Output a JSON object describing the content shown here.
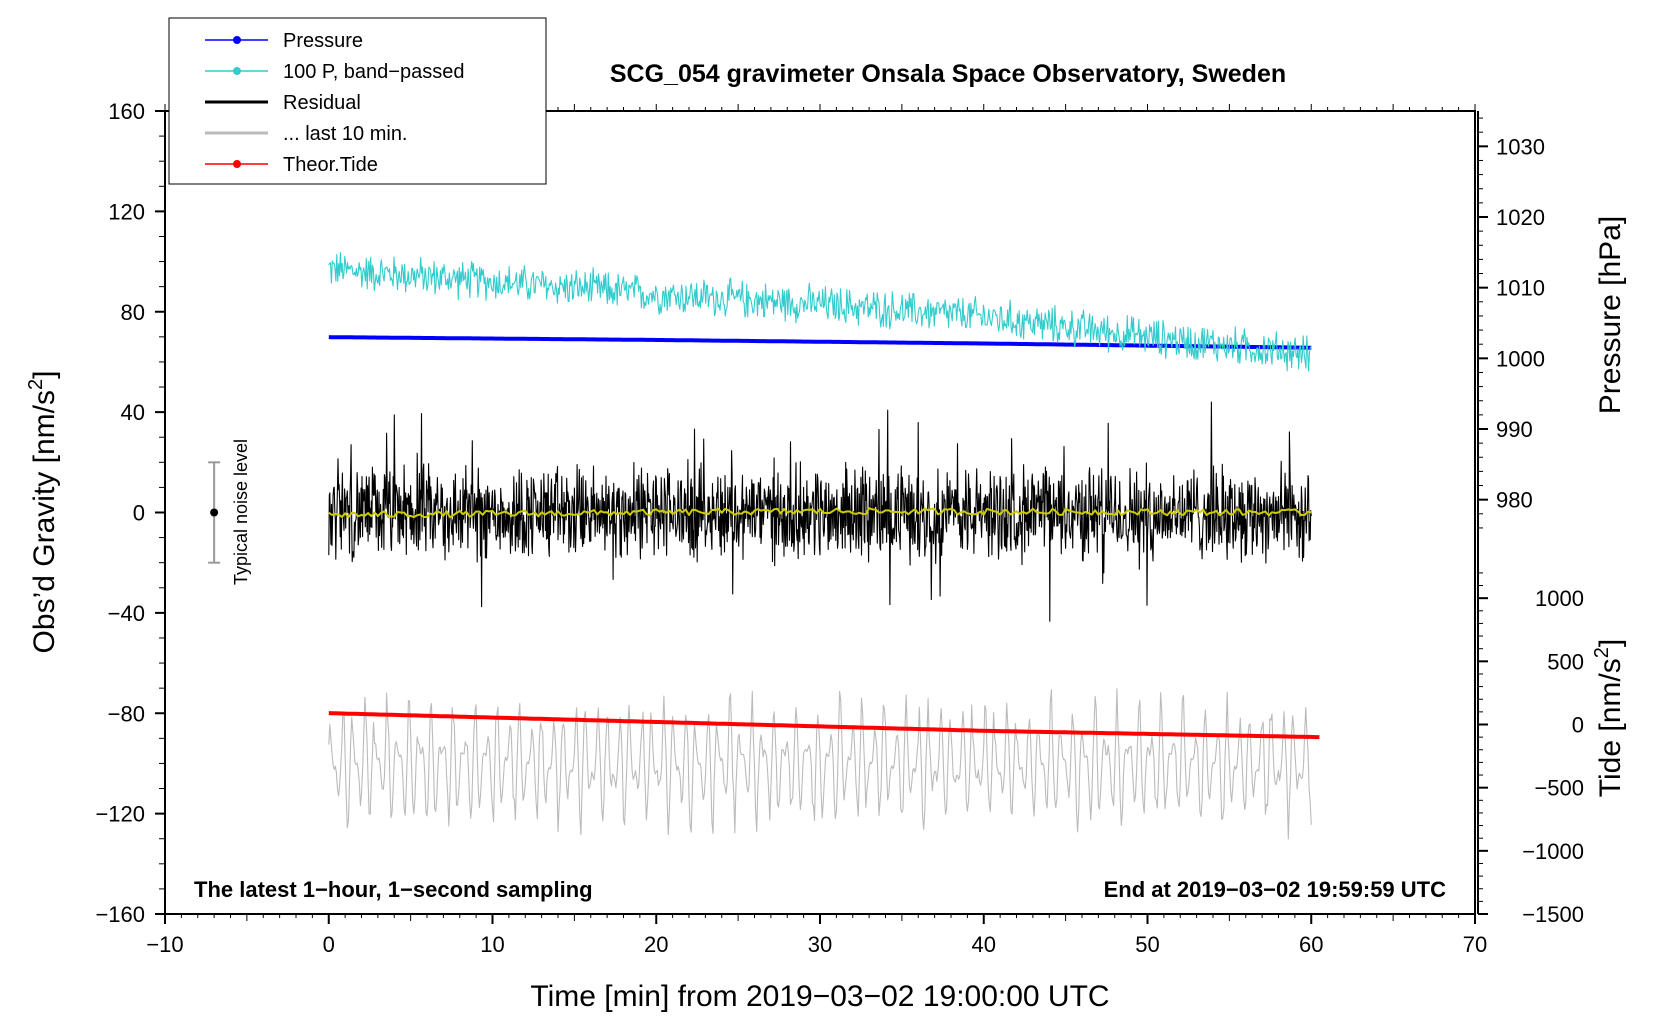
{
  "chart_data": {
    "type": "line",
    "title": "SCG_054 gravimeter Onsala Space Observatory, Sweden",
    "xlabel": "Time [min] from 2019−03−02 19:00:00 UTC",
    "ylabel_left": "Obs’d Gravity [nm/s",
    "ylabel_left_exp": "2",
    "ylabel_left_close": "]",
    "ylabel_pressure": "Pressure [hPa]",
    "ylabel_tide": "Tide [nm/s",
    "ylabel_tide_exp": "2",
    "ylabel_tide_close": "]",
    "xlim": [
      -10,
      70
    ],
    "ylim_left": [
      -160,
      160
    ],
    "ylim_pressure": [
      975,
      1035
    ],
    "ylim_tide": [
      -1500,
      1500
    ],
    "x_ticks": [
      "−10",
      "0",
      "10",
      "20",
      "30",
      "40",
      "50",
      "60",
      "70"
    ],
    "x_tick_values": [
      -10,
      0,
      10,
      20,
      30,
      40,
      50,
      60,
      70
    ],
    "y_ticks_left": [
      "160",
      "120",
      "80",
      "40",
      "0",
      "−40",
      "−80",
      "−120",
      "−160"
    ],
    "y_tick_values_left": [
      160,
      120,
      80,
      40,
      0,
      -40,
      -80,
      -120,
      -160
    ],
    "pressure_ticks": [
      "1030",
      "1020",
      "1010",
      "1000",
      "990",
      "980"
    ],
    "pressure_tick_values": [
      1030,
      1020,
      1010,
      1000,
      990,
      980
    ],
    "tide_ticks": [
      "1000",
      "500",
      "0",
      "−500",
      "−1000",
      "−1500"
    ],
    "tide_tick_values": [
      1000,
      500,
      0,
      -500,
      -1000,
      -1500
    ],
    "footer_left": "The latest 1−hour, 1−second sampling",
    "footer_right": "End at 2019−03−02 19:59:59 UTC",
    "noise": {
      "label": "Typical noise level",
      "x": -7,
      "center": 0,
      "half_range": 20
    },
    "legend": [
      {
        "label": "Pressure",
        "color": "#0000ff",
        "marker": true
      },
      {
        "label": "100 P, band−passed",
        "color": "#33cccc",
        "marker": true
      },
      {
        "label": "Residual",
        "color": "#000000",
        "marker": false
      },
      {
        "label": "... last 10 min.",
        "color": "#bbbbbb",
        "marker": false
      },
      {
        "label": "Theor.Tide",
        "color": "#ff0000",
        "marker": true
      }
    ],
    "series": [
      {
        "name": "Pressure",
        "axis": "pressure",
        "color": "#0000ff",
        "x": [
          0,
          20,
          40,
          60
        ],
        "values": [
          1003.0,
          1002.6,
          1002.1,
          1001.5
        ]
      },
      {
        "name": "100 P, band−passed",
        "axis": "left",
        "color": "#33cccc",
        "x": [
          0,
          10,
          20,
          30,
          40,
          50,
          60
        ],
        "values": [
          97,
          92,
          87,
          83,
          78,
          70,
          63
        ],
        "noise_amplitude": 9
      },
      {
        "name": "Residual",
        "axis": "left",
        "color": "#000000",
        "x": [
          0,
          60
        ],
        "values": [
          0,
          0
        ],
        "noise_amplitude": 22
      },
      {
        "name": "Residual smoothed",
        "axis": "left",
        "color": "#cccc00",
        "x": [
          0,
          30,
          60
        ],
        "values": [
          -1,
          0.5,
          0
        ]
      },
      {
        "name": "... last 10 min.",
        "axis": "left",
        "color": "#bbbbbb",
        "x": [
          0,
          60
        ],
        "values": [
          -100,
          -100
        ],
        "noise_amplitude": 22
      },
      {
        "name": "Theor.Tide",
        "axis": "tide",
        "color": "#ff0000",
        "x": [
          0,
          20,
          40,
          60.5
        ],
        "values": [
          90,
          20,
          -50,
          -100
        ]
      }
    ]
  }
}
